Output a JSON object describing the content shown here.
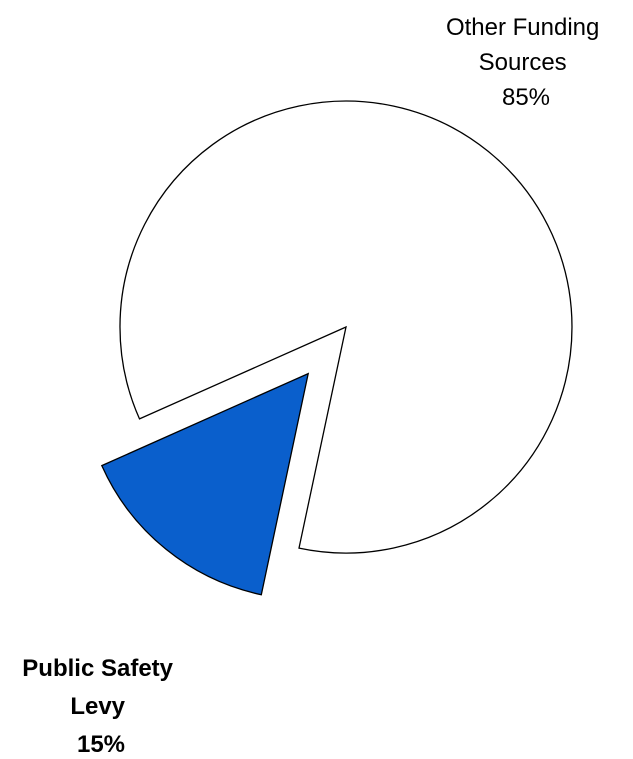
{
  "chart_data": {
    "type": "pie",
    "title": "",
    "exploded": true,
    "slices": [
      {
        "label_lines": [
          "Other Funding",
          "Sources"
        ],
        "percent_label": "85%",
        "value": 85,
        "color": "#ffffff",
        "bold": false
      },
      {
        "label_lines": [
          "Public Safety",
          "Levy"
        ],
        "percent_label": "15%",
        "value": 15,
        "color": "#0a5fcc",
        "bold": true
      }
    ]
  }
}
